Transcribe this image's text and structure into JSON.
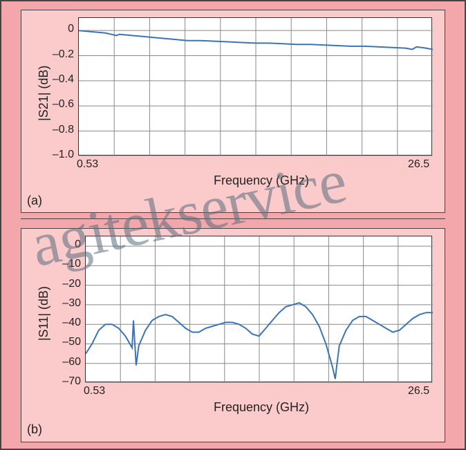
{
  "watermark": "agitekservice",
  "chart_a": {
    "type": "line",
    "sub_label": "(a)",
    "xlabel": "Frequency (GHz)",
    "ylabel": "|S21| (dB)",
    "x_tick_labels": [
      "0.53",
      "26.5"
    ],
    "xlim": [
      0.53,
      26.5
    ],
    "ylim": [
      -1.0,
      0.1
    ],
    "y_tick_values": [
      0,
      -0.2,
      -0.4,
      -0.6,
      -0.8,
      -1.0
    ],
    "y_tick_labels": [
      "0",
      "–0.2",
      "–0.4",
      "–0.6",
      "–0.8",
      "–1.0"
    ],
    "n_x_gridlines": 10,
    "grid_color": "#888888",
    "line_color": "#3a74b8",
    "line_width": 2,
    "background_color": "#ffffff",
    "panel_color": "#fbcacb",
    "tick_fontsize": 16,
    "label_fontsize": 18,
    "data_x": [
      0.53,
      1.5,
      2.5,
      3.3,
      3.5,
      4.5,
      5.5,
      6.5,
      7.5,
      8.5,
      9.5,
      10.5,
      11.5,
      12.5,
      13.5,
      14.5,
      15.5,
      16.5,
      17.5,
      18.5,
      19.5,
      20.5,
      21.5,
      22.5,
      23.5,
      24.5,
      25.0,
      25.3,
      26.0,
      26.5
    ],
    "data_y": [
      0.0,
      -0.01,
      -0.02,
      -0.04,
      -0.03,
      -0.04,
      -0.05,
      -0.06,
      -0.07,
      -0.08,
      -0.08,
      -0.085,
      -0.09,
      -0.095,
      -0.1,
      -0.1,
      -0.105,
      -0.11,
      -0.11,
      -0.115,
      -0.12,
      -0.125,
      -0.125,
      -0.13,
      -0.135,
      -0.14,
      -0.15,
      -0.13,
      -0.14,
      -0.15
    ]
  },
  "chart_b": {
    "type": "line",
    "sub_label": "(b)",
    "xlabel": "Frequency (GHz)",
    "ylabel": "|S11| (dB)",
    "x_tick_labels": [
      "0.53",
      "26.5"
    ],
    "xlim": [
      0.53,
      26.5
    ],
    "ylim": [
      -70,
      5
    ],
    "y_tick_values": [
      0,
      -10,
      -20,
      -30,
      -40,
      -50,
      -60,
      -70
    ],
    "y_tick_labels": [
      "0",
      "–10",
      "–20",
      "–30",
      "–40",
      "–50",
      "–60",
      "–70"
    ],
    "n_x_gridlines": 10,
    "grid_color": "#888888",
    "line_color": "#3a74b8",
    "line_width": 2,
    "background_color": "#ffffff",
    "panel_color": "#fbcacb",
    "tick_fontsize": 16,
    "label_fontsize": 18,
    "data_x": [
      0.53,
      1.0,
      1.5,
      2.0,
      2.5,
      3.0,
      3.5,
      4.0,
      4.1,
      4.3,
      4.5,
      5.0,
      5.5,
      6.0,
      6.5,
      7.0,
      7.5,
      8.0,
      8.5,
      9.0,
      9.5,
      10.0,
      10.5,
      11.0,
      11.5,
      12.0,
      12.5,
      13.0,
      13.5,
      14.0,
      14.5,
      15.0,
      15.5,
      16.0,
      16.5,
      17.0,
      17.5,
      18.0,
      18.5,
      19.0,
      19.2,
      19.3,
      19.5,
      20.0,
      20.5,
      21.0,
      21.5,
      22.0,
      22.5,
      23.0,
      23.5,
      24.0,
      24.5,
      25.0,
      25.5,
      26.0,
      26.5
    ],
    "data_y": [
      -55,
      -50,
      -43,
      -40,
      -40,
      -42,
      -46,
      -52,
      -38,
      -61,
      -51,
      -43,
      -38,
      -36,
      -35,
      -36,
      -39,
      -42,
      -44,
      -44,
      -42,
      -41,
      -40,
      -39,
      -39,
      -40,
      -42,
      -45,
      -46,
      -42,
      -38,
      -34,
      -31,
      -30,
      -29,
      -31,
      -35,
      -41,
      -50,
      -62,
      -68,
      -62,
      -51,
      -43,
      -38,
      -36,
      -36,
      -38,
      -40,
      -42,
      -44,
      -43,
      -40,
      -37,
      -35,
      -34,
      -34
    ]
  }
}
